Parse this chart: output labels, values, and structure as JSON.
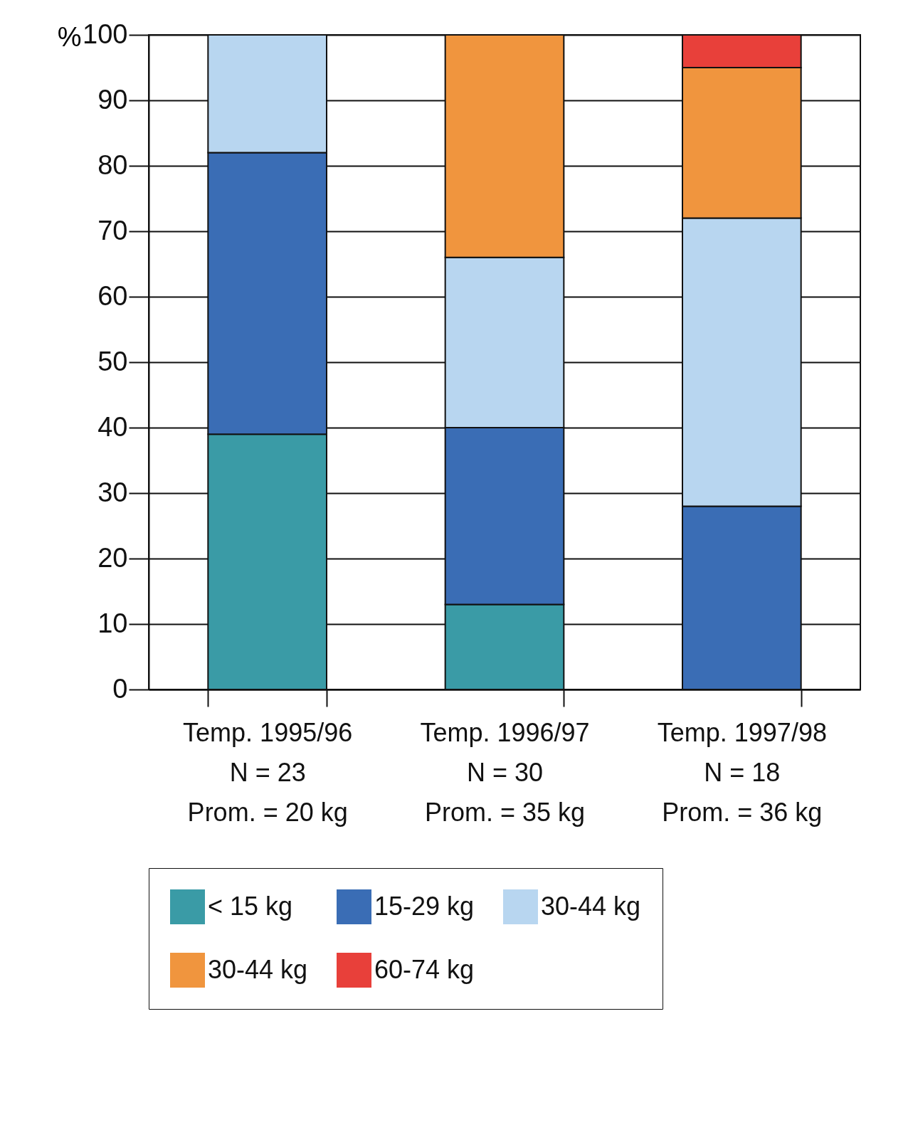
{
  "chart_data": {
    "type": "bar",
    "stacked": true,
    "ylabel": "%",
    "categories": [
      "Temp. 1995/96\nN = 23\nProm. = 20 kg",
      "Temp. 1996/97\nN = 30\nProm. = 35 kg",
      "Temp. 1997/98\nN = 18\nProm. = 36 kg"
    ],
    "series": [
      {
        "name": "< 15 kg",
        "color": "#3a9ba6",
        "values": [
          39,
          13,
          null
        ]
      },
      {
        "name": "15-29 kg",
        "color": "#3a6db5",
        "values": [
          43,
          27,
          28
        ]
      },
      {
        "name": "30-44 kg",
        "color": "#b8d6f0",
        "values": [
          18,
          26,
          44
        ]
      },
      {
        "name": "30-44 kg",
        "color": "#f0953e",
        "values": [
          null,
          34,
          23
        ]
      },
      {
        "name": "60-74 kg",
        "color": "#e8403a",
        "values": [
          null,
          null,
          5
        ]
      }
    ],
    "ylim": [
      0,
      100
    ],
    "yticks": [
      0,
      10,
      20,
      30,
      40,
      50,
      60,
      70,
      80,
      90,
      100
    ],
    "grid": "y",
    "legend": "bottom"
  }
}
